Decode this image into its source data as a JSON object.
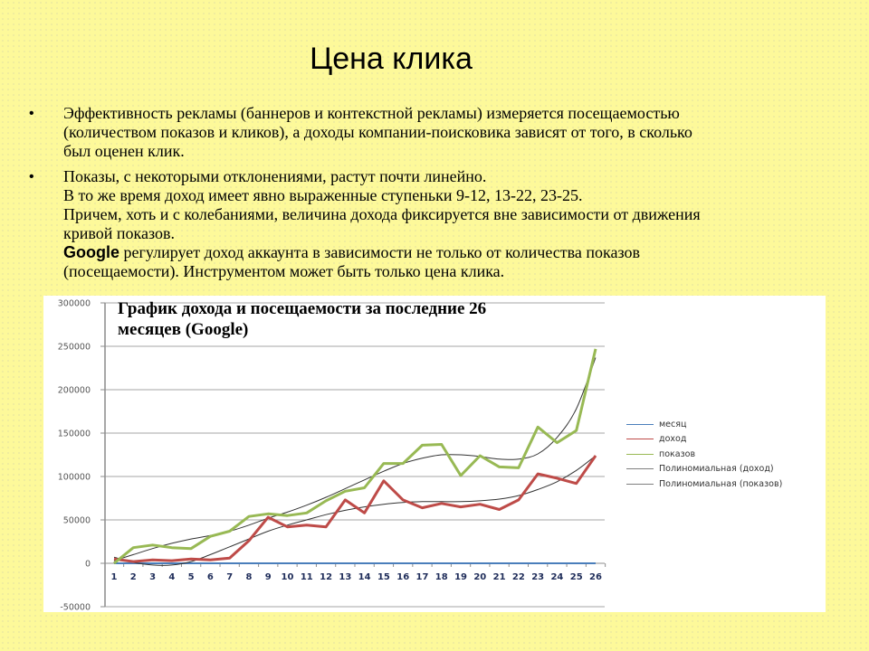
{
  "slide": {
    "title": "Цена клика",
    "bullets": [
      {
        "lines": [
          "Эффективность рекламы (баннеров и контекстной рекламы) измеряется посещаемостью",
          "(количеством показов и кликов), а доходы компании-поисковика зависят от того, в сколько",
          "был оценен клик."
        ]
      },
      {
        "lines": [
          "Показы, с некоторыми отклонениями, растут почти линейно.",
          "В то же время доход имеет явно выраженные ступеньки 9-12, 13-22, 23-25.",
          "Причем, хоть и с колебаниями, величина дохода фиксируется вне зависимости от движения",
          "кривой показов."
        ],
        "google_word": "Google",
        "google_rest": " регулирует доход аккаунта в зависимости не только от количества показов",
        "last_line": "(посещаемости). Инструментом может быть только цена клика."
      }
    ],
    "bullet_glyph": "•"
  },
  "chart_data": {
    "type": "line",
    "title": "График дохода и посещаемости за последние 26 месяцев (Google)",
    "title_lines": [
      "График дохода и посещаемости за последние   26",
      "месяцев (Google)"
    ],
    "xlabel": "",
    "ylabel": "",
    "x": [
      1,
      2,
      3,
      4,
      5,
      6,
      7,
      8,
      9,
      10,
      11,
      12,
      13,
      14,
      15,
      16,
      17,
      18,
      19,
      20,
      21,
      22,
      23,
      24,
      25,
      26
    ],
    "categories": [
      "1",
      "2",
      "3",
      "4",
      "5",
      "6",
      "7",
      "8",
      "9",
      "10",
      "11",
      "12",
      "13",
      "14",
      "15",
      "16",
      "17",
      "18",
      "19",
      "20",
      "21",
      "22",
      "23",
      "24",
      "25",
      "26"
    ],
    "ylim": [
      -50000,
      300000
    ],
    "yticks": [
      300000,
      250000,
      200000,
      150000,
      100000,
      50000,
      0,
      -50000
    ],
    "ytick_labels": [
      "300000",
      "250000",
      "200000",
      "150000",
      "100000",
      "50000",
      "0",
      "-50000"
    ],
    "grid": true,
    "legend_position": "right",
    "series": [
      {
        "name": "месяц",
        "color": "#4a7ebb",
        "width": 2,
        "values": [
          1,
          2,
          3,
          4,
          5,
          6,
          7,
          8,
          9,
          10,
          11,
          12,
          13,
          14,
          15,
          16,
          17,
          18,
          19,
          20,
          21,
          22,
          23,
          24,
          25,
          26
        ]
      },
      {
        "name": "доход",
        "color": "#be4b48",
        "width": 3,
        "values": [
          5000,
          2000,
          4000,
          3000,
          5000,
          4000,
          6000,
          26000,
          53000,
          42000,
          44000,
          42000,
          73000,
          58000,
          95000,
          73000,
          64000,
          69000,
          65000,
          68000,
          62000,
          73000,
          103000,
          98000,
          92000,
          124000
        ]
      },
      {
        "name": "показов",
        "color": "#98b954",
        "width": 3,
        "values": [
          0,
          18000,
          21000,
          18000,
          17000,
          31000,
          37000,
          54000,
          57000,
          55000,
          58000,
          72000,
          83000,
          87000,
          115000,
          115000,
          136000,
          137000,
          101000,
          124000,
          111000,
          110000,
          157000,
          139000,
          153000,
          247000
        ]
      },
      {
        "name": "Полиномиальная (доход)",
        "color": "#333333",
        "width": 1,
        "trendline": true,
        "values": [
          7000,
          1000,
          -2000,
          -2000,
          2000,
          10000,
          19000,
          28000,
          37000,
          44000,
          50000,
          56000,
          61000,
          65000,
          68000,
          70000,
          71000,
          71000,
          71000,
          72000,
          74000,
          78000,
          85000,
          94000,
          107000,
          124000
        ]
      },
      {
        "name": "Полиномиальная (показов)",
        "color": "#333333",
        "width": 1,
        "trendline": true,
        "values": [
          3000,
          10000,
          17000,
          23000,
          28000,
          32000,
          37000,
          44000,
          52000,
          59000,
          67000,
          76000,
          86000,
          96000,
          106000,
          115000,
          121000,
          125000,
          125000,
          123000,
          120000,
          120000,
          126000,
          145000,
          178000,
          237000
        ]
      }
    ]
  },
  "colors": {
    "background": "#fdf99a",
    "chart_background": "#ffffff",
    "gridline": "#a6a6a6",
    "axis": "#8c8c8c"
  }
}
